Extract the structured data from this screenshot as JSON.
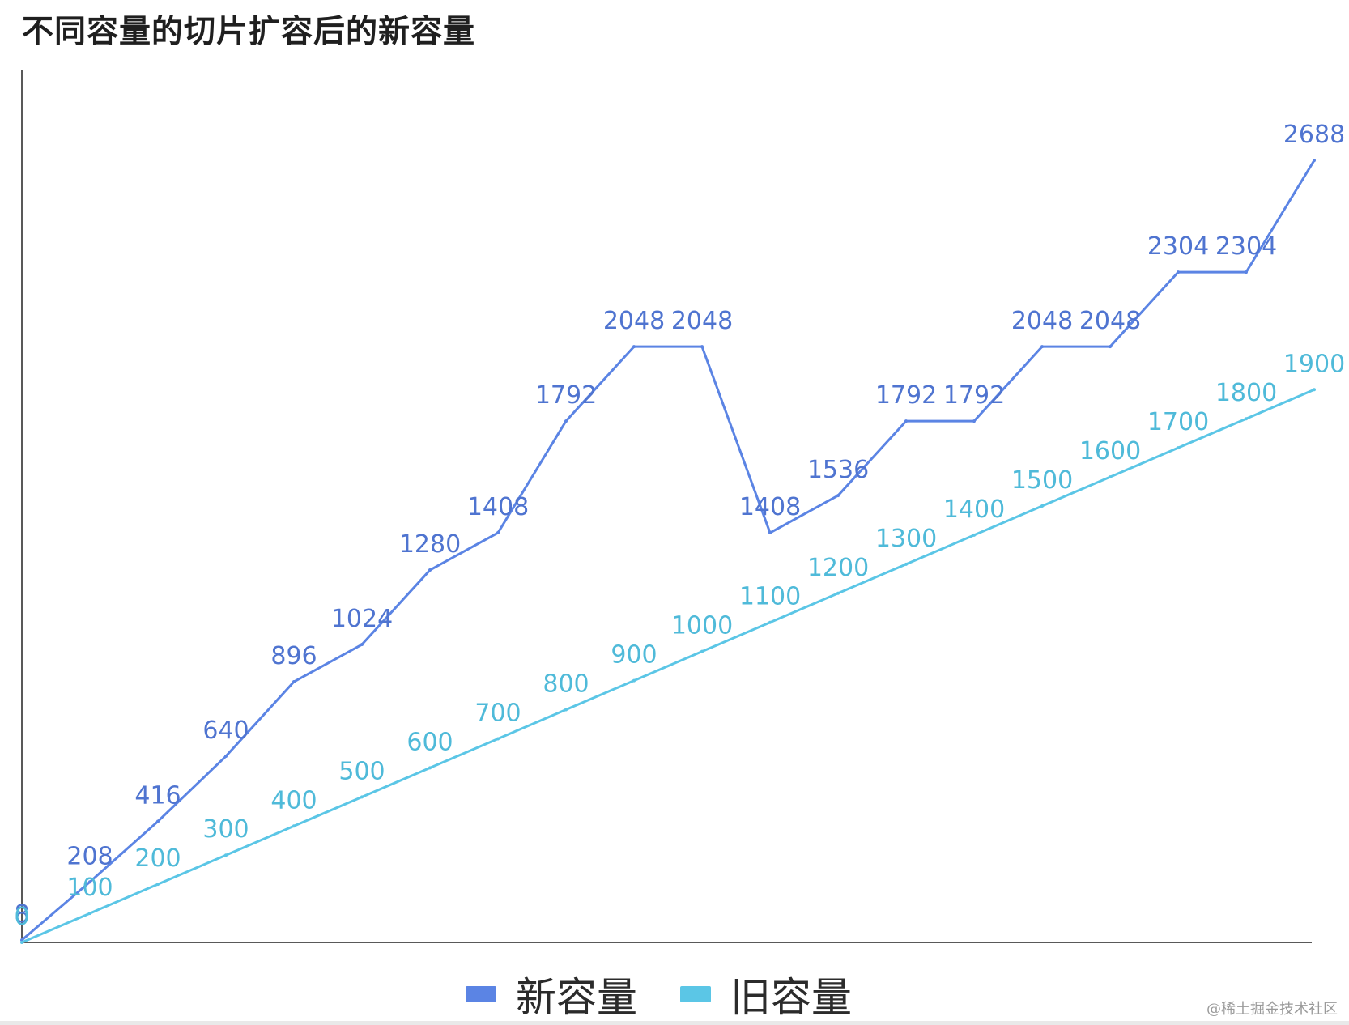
{
  "chart_data": {
    "type": "line",
    "title": "不同容量的切片扩容后的新容量",
    "xlabel": "",
    "ylabel": "",
    "ylim": [
      0,
      3000
    ],
    "grid": false,
    "legend_position": "bottom-center",
    "series": [
      {
        "name": "新容量",
        "color": "#5b84e4",
        "values": [
          8,
          208,
          416,
          640,
          896,
          1024,
          1280,
          1408,
          1792,
          2048,
          2048,
          1408,
          1536,
          1792,
          1792,
          2048,
          2048,
          2304,
          2304,
          2688
        ]
      },
      {
        "name": "旧容量",
        "color": "#5bc6e6",
        "values": [
          0,
          100,
          200,
          300,
          400,
          500,
          600,
          700,
          800,
          900,
          1000,
          1100,
          1200,
          1300,
          1400,
          1500,
          1600,
          1700,
          1800,
          1900
        ]
      }
    ]
  },
  "watermark": "@稀土掘金技术社区"
}
